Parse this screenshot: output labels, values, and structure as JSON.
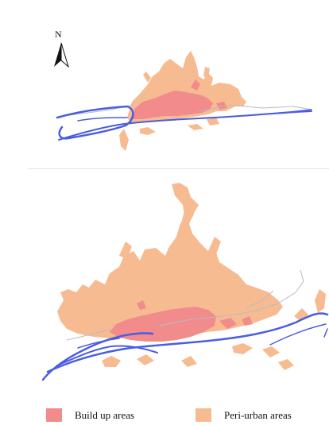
{
  "north_arrow": {
    "label": "N"
  },
  "colors": {
    "build_up": "#f28b8b",
    "peri_urban": "#f7bb91",
    "river": "#4a5de0",
    "river_secondary": "#8a95e8",
    "road": "#b9b9c8"
  },
  "legend": [
    {
      "label": "Build up areas",
      "color_key": "build_up"
    },
    {
      "label": "Peri-urban areas",
      "color_key": "peri_urban"
    }
  ]
}
